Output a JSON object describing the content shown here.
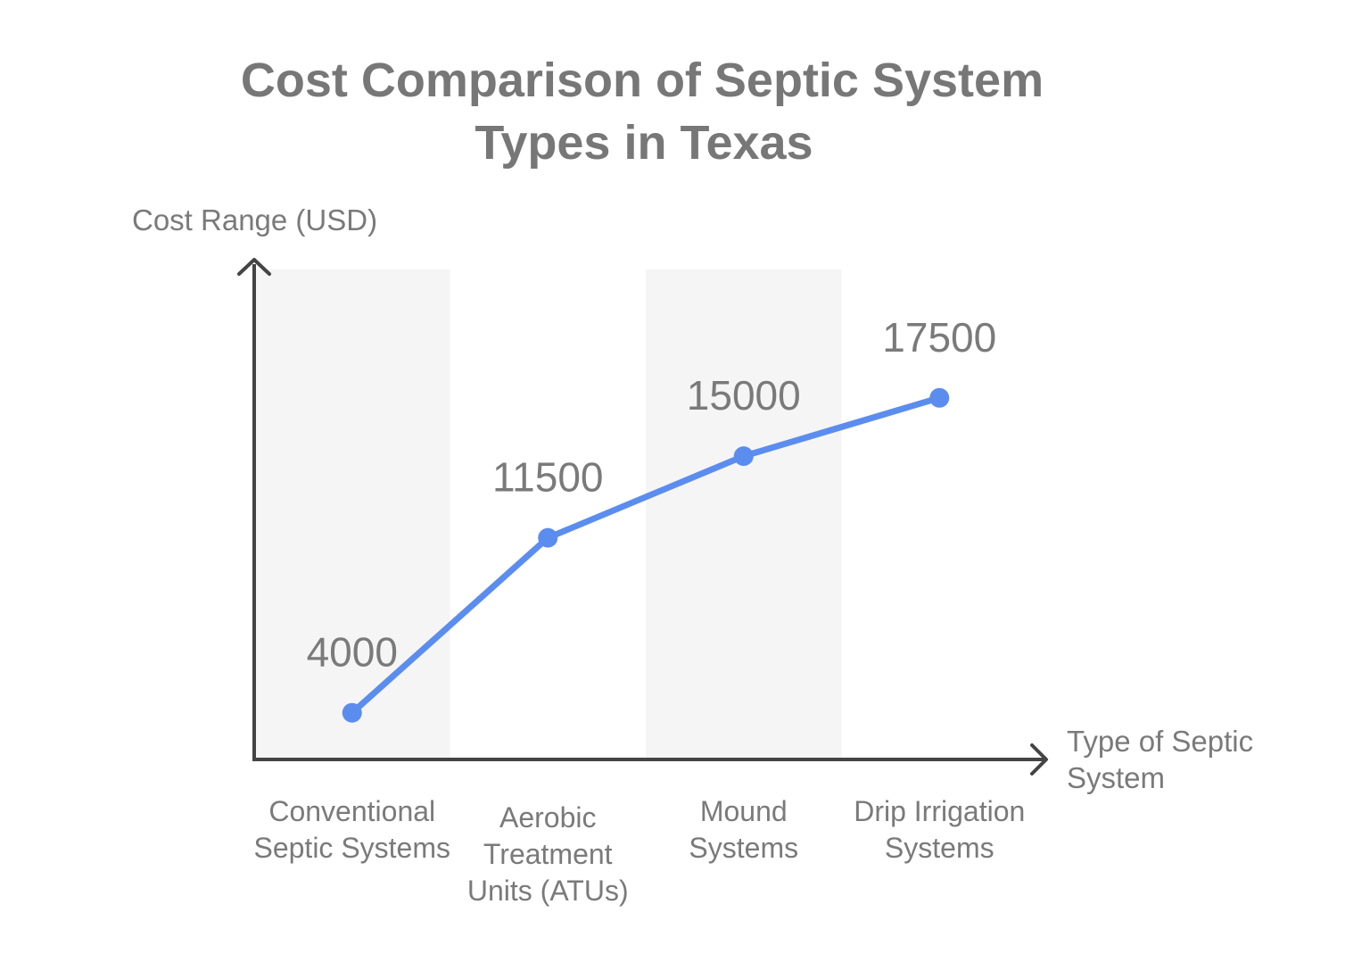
{
  "chart_data": {
    "type": "line",
    "title_lines": [
      "Cost Comparison of Septic System",
      "Types in Texas"
    ],
    "ylabel": "Cost Range (USD)",
    "xlabel_lines": [
      "Type of Septic",
      "System"
    ],
    "categories": [
      [
        "Conventional",
        "Septic Systems"
      ],
      [
        "Aerobic",
        "Treatment",
        "Units (ATUs)"
      ],
      [
        "Mound",
        "Systems"
      ],
      [
        "Drip Irrigation",
        "Systems"
      ]
    ],
    "values": [
      4000,
      11500,
      15000,
      17500
    ],
    "data_labels": [
      "4000",
      "11500",
      "15000",
      "17500"
    ],
    "ylim": [
      2000,
      23000
    ],
    "grid": false,
    "alternating_bands": true,
    "colors": {
      "line": "#5b8def",
      "axis": "#444444",
      "band": "#f5f5f5",
      "text": "#7a7a7a",
      "title": "#777777"
    }
  }
}
